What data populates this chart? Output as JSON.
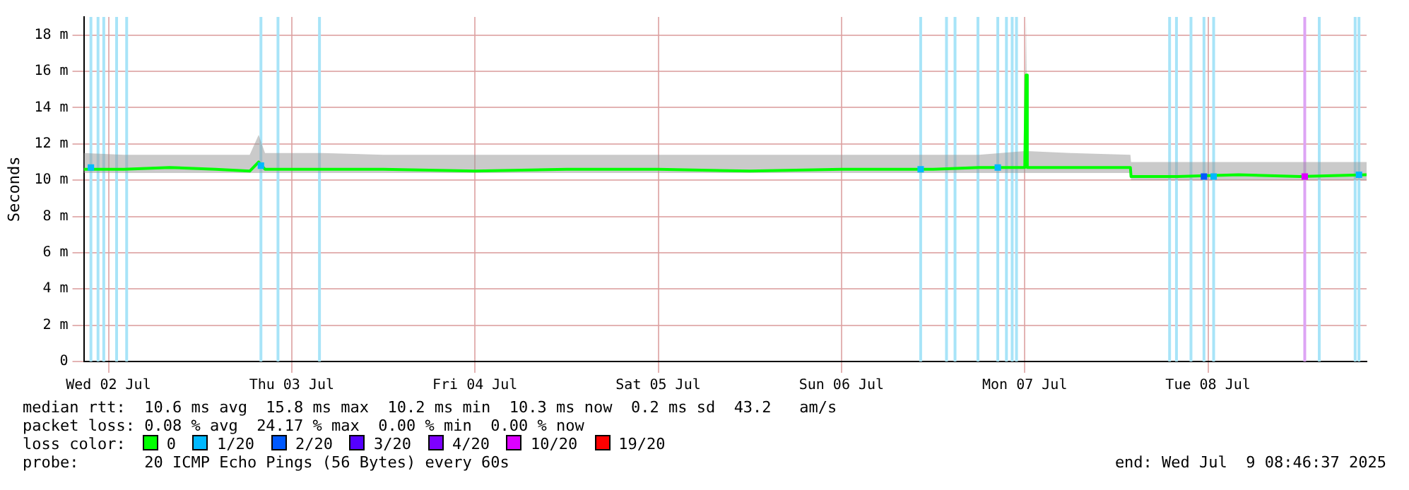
{
  "chart_data": {
    "type": "line",
    "ylabel": "Seconds",
    "legend_title": "loss color:",
    "legend": "bottom",
    "grid": true,
    "xlim": [
      "2025-07-02T08:46",
      "2025-07-09T08:46"
    ],
    "xticks": [
      {
        "value": "2025-07-02T12:00",
        "label": "Wed 02 Jul"
      },
      {
        "value": "2025-07-03T12:00",
        "label": "Thu 03 Jul"
      },
      {
        "value": "2025-07-04T12:00",
        "label": "Fri 04 Jul"
      },
      {
        "value": "2025-07-05T12:00",
        "label": "Sat 05 Jul"
      },
      {
        "value": "2025-07-06T12:00",
        "label": "Sun 06 Jul"
      },
      {
        "value": "2025-07-07T12:00",
        "label": "Mon 07 Jul"
      },
      {
        "value": "2025-07-08T12:00",
        "label": "Tue 08 Jul"
      }
    ],
    "ylim": [
      0,
      19
    ],
    "yticks": [
      0,
      {
        "value": 2,
        "label": "2 m"
      },
      {
        "value": 4,
        "label": "4 m"
      },
      {
        "value": 6,
        "label": "6 m"
      },
      {
        "value": 8,
        "label": "8 m"
      },
      {
        "value": 10,
        "label": "10 m"
      },
      {
        "value": 12,
        "label": "12 m"
      },
      {
        "value": 14,
        "label": "14 m"
      },
      {
        "value": 16,
        "label": "16 m"
      },
      {
        "value": 18,
        "label": "18 m"
      }
    ],
    "series": [
      {
        "name": "0",
        "color": "#00ff00",
        "x": [
          "2025-07-02T08:46",
          "2025-07-02T14:00",
          "2025-07-02T20:00",
          "2025-07-03T02:00",
          "2025-07-03T06:30",
          "2025-07-03T07:40",
          "2025-07-03T08:30",
          "2025-07-03T16:00",
          "2025-07-04T00:00",
          "2025-07-04T12:00",
          "2025-07-05T00:00",
          "2025-07-05T12:00",
          "2025-07-06T00:00",
          "2025-07-06T12:00",
          "2025-07-07T00:00",
          "2025-07-07T06:00",
          "2025-07-07T12:00",
          "2025-07-07T12:10",
          "2025-07-07T12:20",
          "2025-07-07T18:00",
          "2025-07-08T01:50",
          "2025-07-08T01:55",
          "2025-07-08T08:00",
          "2025-07-08T16:00",
          "2025-07-09T00:00",
          "2025-07-09T08:46"
        ],
        "values": [
          10.6,
          10.6,
          10.7,
          10.6,
          10.5,
          11.0,
          10.6,
          10.6,
          10.6,
          10.5,
          10.6,
          10.6,
          10.5,
          10.6,
          10.6,
          10.7,
          10.7,
          15.8,
          10.7,
          10.7,
          10.7,
          10.2,
          10.2,
          10.3,
          10.2,
          10.3
        ],
        "lower": [
          10.4,
          10.4,
          10.4,
          10.4,
          10.4,
          10.4,
          10.4,
          10.4,
          10.4,
          10.4,
          10.4,
          10.4,
          10.4,
          10.4,
          10.4,
          10.4,
          10.4,
          10.4,
          10.4,
          10.4,
          10.4,
          10.0,
          10.0,
          10.0,
          10.0,
          10.0
        ],
        "upper": [
          11.5,
          11.4,
          11.4,
          11.4,
          11.4,
          12.5,
          11.5,
          11.5,
          11.4,
          11.4,
          11.4,
          11.4,
          11.4,
          11.4,
          11.4,
          11.4,
          11.6,
          19.0,
          11.6,
          11.5,
          11.4,
          11.0,
          11.0,
          11.0,
          11.0,
          11.0
        ]
      },
      {
        "name": "1/20",
        "type": "scatter",
        "color": "#00b8ff",
        "x": [
          "2025-07-02T09:42",
          "2025-07-03T07:58",
          "2025-07-06T22:22",
          "2025-07-07T08:28",
          "2025-07-08T12:44",
          "2025-07-09T07:46"
        ],
        "values": [
          10.7,
          10.8,
          10.6,
          10.7,
          10.2,
          10.3
        ]
      },
      {
        "name": "2/20",
        "type": "scatter",
        "color": "#0059ff",
        "x": [
          "2025-07-08T11:28"
        ],
        "values": [
          10.2
        ]
      },
      {
        "name": "3/20",
        "type": "scatter",
        "color": "#5500ff"
      },
      {
        "name": "4/20",
        "type": "scatter",
        "color": "#7e00ff"
      },
      {
        "name": "10/20",
        "type": "scatter",
        "color": "#dd00ff",
        "x": [
          "2025-07-09T00:40"
        ],
        "values": [
          10.2
        ]
      },
      {
        "name": "19/20",
        "type": "scatter",
        "color": "#ff0000"
      }
    ],
    "ref_lines": [
      {
        "axis": "x",
        "value": "2025-07-02T09:42",
        "color": "#a8e4f8"
      },
      {
        "axis": "x",
        "value": "2025-07-02T10:38",
        "color": "#a8e4f8"
      },
      {
        "axis": "x",
        "value": "2025-07-02T11:23",
        "color": "#a8e4f8"
      },
      {
        "axis": "x",
        "value": "2025-07-02T13:04",
        "color": "#a8e4f8"
      },
      {
        "axis": "x",
        "value": "2025-07-02T14:23",
        "color": "#a8e4f8"
      },
      {
        "axis": "x",
        "value": "2025-07-03T07:58",
        "color": "#a8e4f8"
      },
      {
        "axis": "x",
        "value": "2025-07-03T10:12",
        "color": "#a8e4f8"
      },
      {
        "axis": "x",
        "value": "2025-07-03T15:38",
        "color": "#a8e4f8"
      },
      {
        "axis": "x",
        "value": "2025-07-06T22:22",
        "color": "#a8e4f8"
      },
      {
        "axis": "x",
        "value": "2025-07-07T01:45",
        "color": "#a8e4f8"
      },
      {
        "axis": "x",
        "value": "2025-07-07T02:52",
        "color": "#a8e4f8"
      },
      {
        "axis": "x",
        "value": "2025-07-07T05:52",
        "color": "#a8e4f8"
      },
      {
        "axis": "x",
        "value": "2025-07-07T08:28",
        "color": "#a8e4f8"
      },
      {
        "axis": "x",
        "value": "2025-07-07T09:36",
        "color": "#a8e4f8"
      },
      {
        "axis": "x",
        "value": "2025-07-07T10:21",
        "color": "#a8e4f8"
      },
      {
        "axis": "x",
        "value": "2025-07-07T10:55",
        "color": "#a8e4f8"
      },
      {
        "axis": "x",
        "value": "2025-07-08T06:58",
        "color": "#a8e4f8"
      },
      {
        "axis": "x",
        "value": "2025-07-08T07:52",
        "color": "#a8e4f8"
      },
      {
        "axis": "x",
        "value": "2025-07-08T09:46",
        "color": "#a8e4f8"
      },
      {
        "axis": "x",
        "value": "2025-07-08T11:28",
        "color": "#a8e4f8"
      },
      {
        "axis": "x",
        "value": "2025-07-08T12:44",
        "color": "#a8e4f8"
      },
      {
        "axis": "x",
        "value": "2025-07-09T00:40",
        "color": "#dda4f4"
      },
      {
        "axis": "x",
        "value": "2025-07-09T02:34",
        "color": "#a8e4f8"
      },
      {
        "axis": "x",
        "value": "2025-07-09T07:16",
        "color": "#a8e4f8"
      },
      {
        "axis": "x",
        "value": "2025-07-09T07:46",
        "color": "#a8e4f8"
      }
    ],
    "annotations": [
      "median rtt:  10.6 ms avg  15.8 ms max  10.2 ms min  10.3 ms now  0.2 ms sd  43.2   am/s",
      "packet loss: 0.08 % avg  24.17 % max  0.00 % min  0.00 % now",
      "probe:       20 ICMP Echo Pings (56 Bytes) every 60s",
      "end: Wed Jul  9 08:46:37 2025"
    ]
  }
}
